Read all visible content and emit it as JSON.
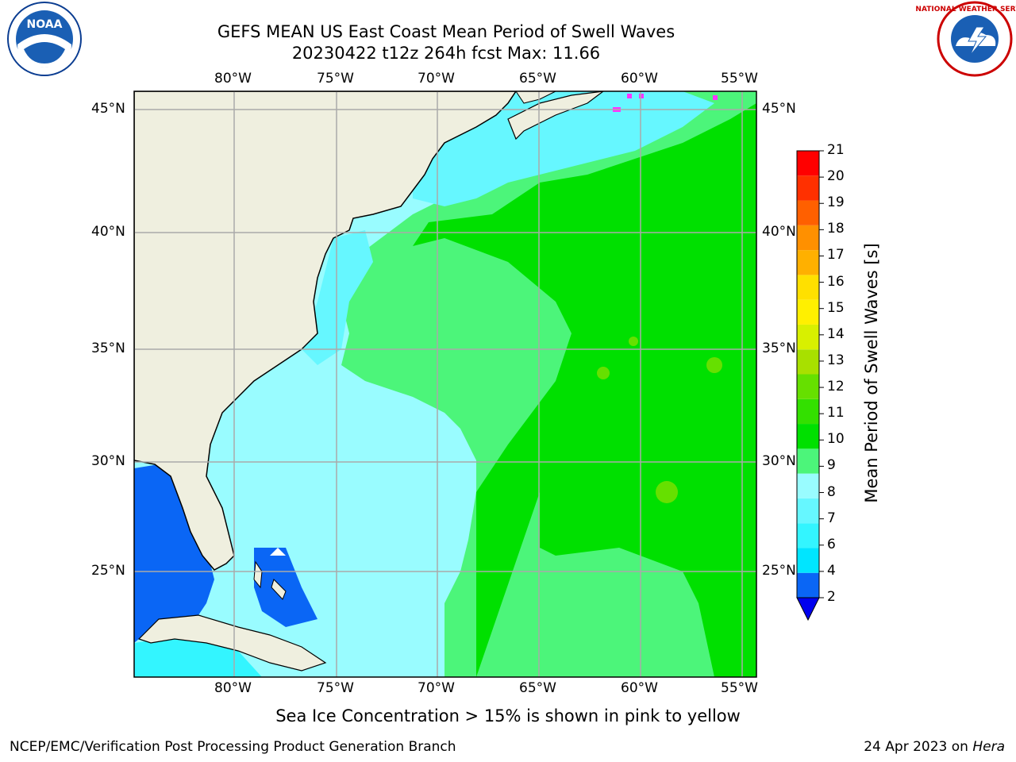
{
  "title_line1": "GEFS MEAN US East Coast Mean Period of Swell Waves",
  "title_line2": "20230422 t12z 264h fcst   Max: 11.66",
  "lon_labels": [
    "80°W",
    "75°W",
    "70°W",
    "65°W",
    "60°W",
    "55°W"
  ],
  "lat_labels": [
    "45°N",
    "40°N",
    "35°N",
    "30°N",
    "25°N"
  ],
  "colorbar": {
    "title": "Mean Period of Swell Waves [s]",
    "ticks": [
      "2",
      "4",
      "6",
      "7",
      "8",
      "9",
      "10",
      "11",
      "12",
      "13",
      "14",
      "15",
      "16",
      "17",
      "18",
      "19",
      "20",
      "21"
    ],
    "colors": [
      "#0a66f5",
      "#00e5ff",
      "#33f5ff",
      "#66f7ff",
      "#99fcff",
      "#4cf57a",
      "#00e000",
      "#33e000",
      "#66e000",
      "#a8e000",
      "#d8f000",
      "#fff000",
      "#ffe000",
      "#ffb000",
      "#ff9000",
      "#ff6000",
      "#ff3000",
      "#ff0000"
    ],
    "extend_color": "#0000ee"
  },
  "caption": "Sea Ice Concentration > 15% is shown in pink to yellow",
  "footer_left": "NCEP/EMC/Verification Post Processing Product Generation Branch",
  "footer_right_date": "24 Apr 2023 on ",
  "footer_right_machine": "Hera",
  "logos": {
    "left": "NOAA",
    "right": "NATIONAL WEATHER SERVICE"
  }
}
